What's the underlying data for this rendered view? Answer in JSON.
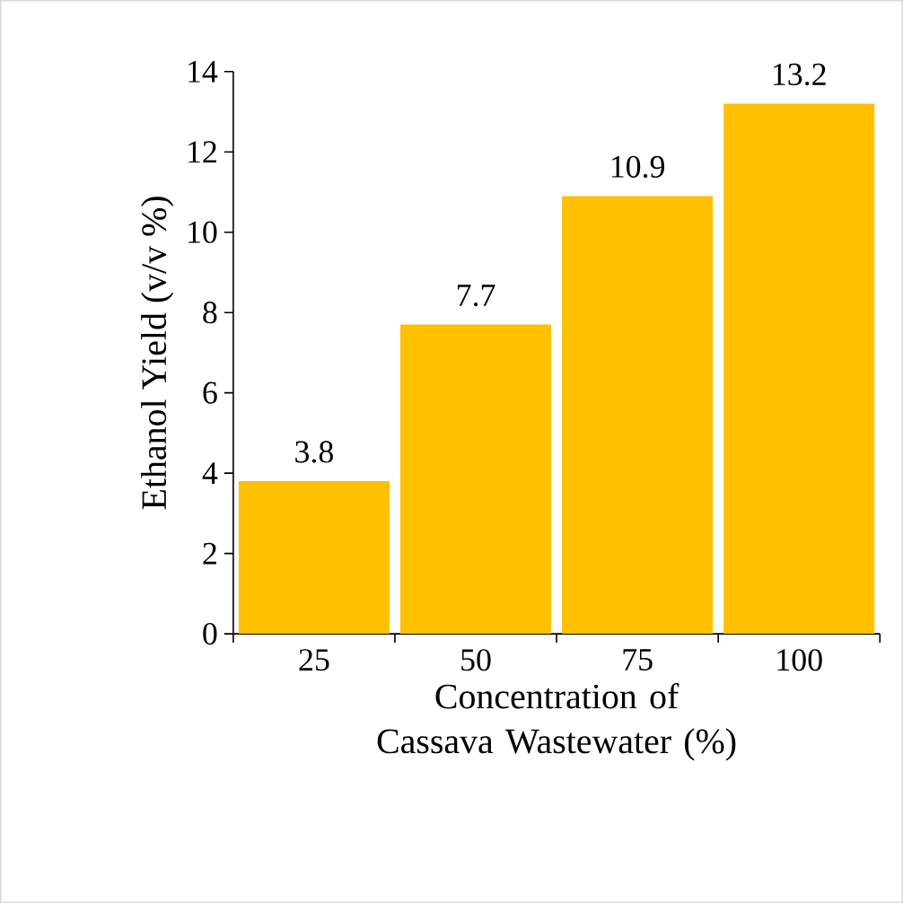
{
  "chart_data": {
    "type": "bar",
    "xlabel": "Concentration of Cassava Wastewater (%)",
    "ylabel": "Ethanol Yield (v/v %)",
    "categories": [
      "25",
      "50",
      "75",
      "100"
    ],
    "values": [
      3.8,
      7.7,
      10.9,
      13.2
    ],
    "color": "#ffc000",
    "ylim": [
      0,
      14
    ],
    "yticks": [
      0,
      2,
      4,
      6,
      8,
      10,
      12,
      14
    ],
    "grid": false,
    "data_labels": true
  }
}
